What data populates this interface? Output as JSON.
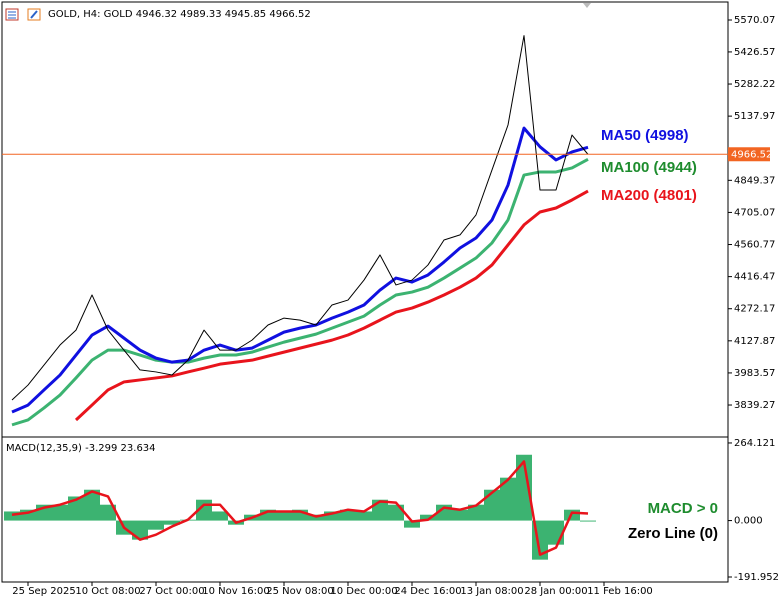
{
  "chart_data": [
    {
      "type": "line",
      "title": "GOLD, H4:  GOLD  4946.32 4989.33 4945.85 4966.52",
      "ylim": [
        3700,
        5642
      ],
      "yticks": [
        5570.07,
        5426.57,
        5282.22,
        5137.97,
        4849.37,
        4705.07,
        4560.77,
        4416.47,
        4272.17,
        4127.87,
        3983.57,
        3839.27
      ],
      "current_price": 4966.52,
      "current_price_color": "#f26522",
      "series": [
        {
          "color": "#000000",
          "width": 1,
          "values": [
            3862,
            3929,
            4019,
            4109,
            4176,
            4334,
            4176,
            4086,
            3997,
            3988,
            3974,
            4041,
            4176,
            4086,
            4086,
            4131,
            4199,
            4230,
            4221,
            4199,
            4289,
            4311,
            4401,
            4514,
            4379,
            4401,
            4469,
            4581,
            4604,
            4694,
            4896,
            5098,
            5500,
            4806,
            4806,
            5053,
            4966,
            null
          ]
        },
        {
          "color": "#1010e0",
          "width": 3,
          "label": "MA50 (4998)",
          "values": [
            3808,
            3839,
            3907,
            3974,
            4064,
            4154,
            4194,
            4140,
            4086,
            4050,
            4032,
            4041,
            4086,
            4109,
            4086,
            4095,
            4131,
            4167,
            4185,
            4199,
            4230,
            4257,
            4289,
            4356,
            4410,
            4392,
            4424,
            4482,
            4545,
            4590,
            4671,
            4828,
            5084,
            5000,
            4941,
            4977,
            4998,
            null
          ]
        },
        {
          "color": "#3cb371",
          "width": 3,
          "label": "MA100 (4944)",
          "label_color": "#1e8c2e",
          "values": [
            3750,
            3772,
            3826,
            3884,
            3961,
            4041,
            4086,
            4086,
            4064,
            4041,
            4032,
            4032,
            4050,
            4064,
            4064,
            4077,
            4100,
            4122,
            4140,
            4158,
            4185,
            4212,
            4239,
            4289,
            4334,
            4347,
            4369,
            4410,
            4455,
            4500,
            4568,
            4671,
            4873,
            4887,
            4887,
            4905,
            4944,
            null
          ]
        },
        {
          "color": "#e8141c",
          "width": 3,
          "label": "MA200 (4801)",
          "values": [
            null,
            null,
            null,
            null,
            3772,
            3839,
            3907,
            3943,
            3952,
            3961,
            3970,
            3988,
            4005,
            4023,
            4032,
            4041,
            4059,
            4077,
            4095,
            4113,
            4131,
            4154,
            4185,
            4221,
            4257,
            4275,
            4302,
            4334,
            4369,
            4410,
            4469,
            4559,
            4649,
            4707,
            4725,
            4761,
            4801,
            null
          ]
        }
      ]
    },
    {
      "type": "bar",
      "title": "MACD(12,35,9) -3.299 23.634",
      "ylim": [
        -209,
        281
      ],
      "yticks": [
        264.121,
        {
          "value": 0,
          "label": "0.000"
        },
        -191.952
      ],
      "categories": [
        null,
        "25 Sep 2025",
        null,
        null,
        null,
        "10 Oct 08:00",
        null,
        null,
        null,
        "27 Oct 00:00",
        null,
        null,
        null,
        "10 Nov 16:00",
        null,
        null,
        null,
        "25 Nov 08:00",
        null,
        null,
        null,
        "10 Dec 00:00",
        null,
        null,
        null,
        "24 Dec 16:00",
        null,
        null,
        null,
        "13 Jan 08:00",
        null,
        null,
        null,
        "28 Jan 00:00",
        null,
        null,
        null,
        "11 Feb 16:00"
      ],
      "values": [
        31,
        37,
        54,
        54,
        82,
        105,
        54,
        -48,
        -65,
        -31,
        -14,
        3,
        71,
        31,
        -14,
        20,
        37,
        31,
        37,
        20,
        31,
        37,
        31,
        71,
        54,
        -24,
        20,
        54,
        37,
        54,
        105,
        146,
        224,
        -133,
        -82,
        37,
        -3.3,
        null
      ],
      "color": "#3cb371",
      "signal": {
        "color": "#e8141c",
        "values": [
          20,
          27,
          44,
          54,
          71,
          99,
          82,
          -24,
          -65,
          -48,
          -20,
          3,
          54,
          54,
          -7,
          10,
          31,
          31,
          31,
          14,
          24,
          37,
          31,
          65,
          61,
          -3,
          3,
          44,
          37,
          51,
          95,
          139,
          201,
          -116,
          -92,
          27,
          24,
          null
        ]
      },
      "annotations": [
        {
          "text": "MACD > 0",
          "color": "#1e8c2e"
        },
        {
          "text": "Zero Line (0)",
          "color": "#000000"
        }
      ]
    }
  ]
}
